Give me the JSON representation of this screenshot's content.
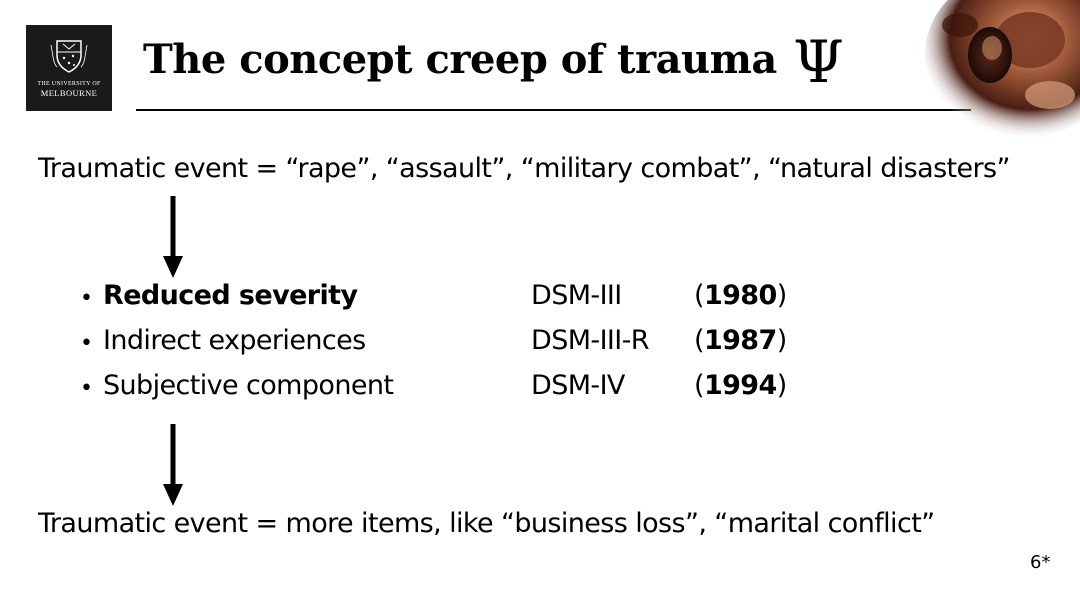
{
  "logo": {
    "line1": "THE UNIVERSITY OF",
    "line2": "MELBOURNE"
  },
  "slide": {
    "title": "The concept creep of trauma",
    "title_symbol": "Ψ",
    "top_statement": "Traumatic event = “rape”, “assault”, “military combat”, “natural disasters”",
    "bottom_statement": "Traumatic event = more items, like “business loss”, “marital conflict”",
    "bullets": [
      {
        "label": "Reduced severity",
        "edition": "DSM-III",
        "year": "1980"
      },
      {
        "label": "Indirect experiences",
        "edition": "DSM-III-R",
        "year": "1987"
      },
      {
        "label": "Subjective component",
        "edition": "DSM-IV",
        "year": "1994"
      }
    ],
    "page_number": "6*"
  },
  "icons": {
    "logo": "university-crest-icon",
    "arrow": "down-arrow-icon",
    "bullet": "bullet-dot-icon",
    "corner": "brain-image"
  },
  "colors": {
    "background": "#ffffff",
    "text": "#000000",
    "logo_background": "#1a1a1a"
  }
}
